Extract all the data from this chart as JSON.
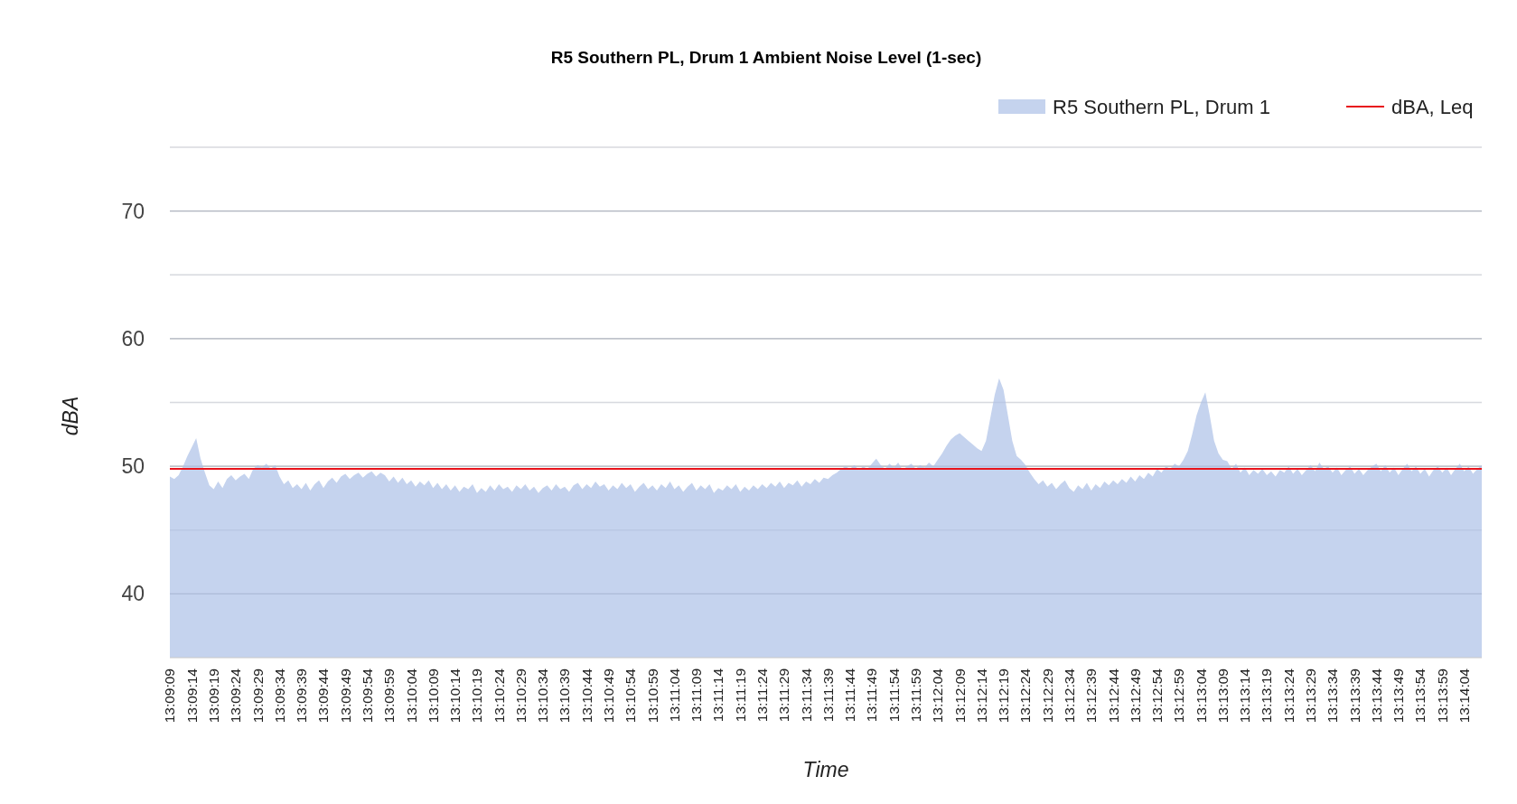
{
  "chart_data": {
    "type": "area",
    "title": "R5 Southern PL, Drum 1 Ambient Noise Level (1-sec)",
    "xlabel": "Time",
    "ylabel": "dBA",
    "categories": [
      "13:09:09",
      null,
      null,
      null,
      null,
      "13:09:14",
      null,
      null,
      null,
      null,
      "13:09:19",
      null,
      null,
      null,
      null,
      "13:09:24",
      null,
      null,
      null,
      null,
      "13:09:29",
      null,
      null,
      null,
      null,
      "13:09:34",
      null,
      null,
      null,
      null,
      "13:09:39",
      null,
      null,
      null,
      null,
      "13:09:44",
      null,
      null,
      null,
      null,
      "13:09:49",
      null,
      null,
      null,
      null,
      "13:09:54",
      null,
      null,
      null,
      null,
      "13:09:59",
      null,
      null,
      null,
      null,
      "13:10:04",
      null,
      null,
      null,
      null,
      "13:10:09",
      null,
      null,
      null,
      null,
      "13:10:14",
      null,
      null,
      null,
      null,
      "13:10:19",
      null,
      null,
      null,
      null,
      "13:10:24",
      null,
      null,
      null,
      null,
      "13:10:29",
      null,
      null,
      null,
      null,
      "13:10:34",
      null,
      null,
      null,
      null,
      "13:10:39",
      null,
      null,
      null,
      null,
      "13:10:44",
      null,
      null,
      null,
      null,
      "13:10:49",
      null,
      null,
      null,
      null,
      "13:10:54",
      null,
      null,
      null,
      null,
      "13:10:59",
      null,
      null,
      null,
      null,
      "13:11:04",
      null,
      null,
      null,
      null,
      "13:11:09",
      null,
      null,
      null,
      null,
      "13:11:14",
      null,
      null,
      null,
      null,
      "13:11:19",
      null,
      null,
      null,
      null,
      "13:11:24",
      null,
      null,
      null,
      null,
      "13:11:29",
      null,
      null,
      null,
      null,
      "13:11:34",
      null,
      null,
      null,
      null,
      "13:11:39",
      null,
      null,
      null,
      null,
      "13:11:44",
      null,
      null,
      null,
      null,
      "13:11:49",
      null,
      null,
      null,
      null,
      "13:11:54",
      null,
      null,
      null,
      null,
      "13:11:59",
      null,
      null,
      null,
      null,
      "13:12:04",
      null,
      null,
      null,
      null,
      "13:12:09",
      null,
      null,
      null,
      null,
      "13:12:14",
      null,
      null,
      null,
      null,
      "13:12:19",
      null,
      null,
      null,
      null,
      "13:12:24",
      null,
      null,
      null,
      null,
      "13:12:29",
      null,
      null,
      null,
      null,
      "13:12:34",
      null,
      null,
      null,
      null,
      "13:12:39",
      null,
      null,
      null,
      null,
      "13:12:44",
      null,
      null,
      null,
      null,
      "13:12:49",
      null,
      null,
      null,
      null,
      "13:12:54",
      null,
      null,
      null,
      null,
      "13:12:59",
      null,
      null,
      null,
      null,
      "13:13:04",
      null,
      null,
      null,
      null,
      "13:13:09",
      null,
      null,
      null,
      null,
      "13:13:14",
      null,
      null,
      null,
      null,
      "13:13:19",
      null,
      null,
      null,
      null,
      "13:13:24",
      null,
      null,
      null,
      null,
      "13:13:29",
      null,
      null,
      null,
      null,
      "13:13:34",
      null,
      null,
      null,
      null,
      "13:13:39",
      null,
      null,
      null,
      null,
      "13:13:44",
      null,
      null,
      null,
      null,
      "13:13:49",
      null,
      null,
      null,
      null,
      "13:13:54",
      null,
      null,
      null,
      null,
      "13:13:59",
      null,
      null,
      null,
      null,
      "13:14:04",
      null,
      null,
      null,
      null
    ],
    "series": [
      {
        "name": "R5 Southern PL, Drum 1",
        "color": "#c5d3ee",
        "values": [
          49.2,
          49.0,
          49.3,
          50.0,
          50.8,
          51.5,
          52.2,
          50.6,
          49.5,
          48.5,
          48.2,
          48.8,
          48.3,
          49.0,
          49.3,
          48.9,
          49.2,
          49.4,
          49.0,
          49.8,
          50.1,
          49.9,
          50.2,
          49.8,
          50.1,
          49.2,
          48.6,
          48.9,
          48.3,
          48.6,
          48.2,
          48.7,
          48.1,
          48.6,
          48.9,
          48.3,
          48.8,
          49.1,
          48.7,
          49.2,
          49.4,
          49.0,
          49.3,
          49.5,
          49.1,
          49.4,
          49.6,
          49.2,
          49.5,
          49.3,
          48.8,
          49.2,
          48.7,
          49.1,
          48.6,
          48.9,
          48.4,
          48.8,
          48.5,
          48.9,
          48.3,
          48.7,
          48.2,
          48.6,
          48.1,
          48.5,
          48.0,
          48.4,
          48.2,
          48.6,
          47.9,
          48.3,
          48.0,
          48.5,
          48.1,
          48.6,
          48.2,
          48.4,
          48.0,
          48.5,
          48.2,
          48.6,
          48.1,
          48.4,
          47.9,
          48.3,
          48.5,
          48.1,
          48.6,
          48.2,
          48.4,
          48.0,
          48.5,
          48.7,
          48.2,
          48.6,
          48.3,
          48.8,
          48.4,
          48.6,
          48.1,
          48.5,
          48.2,
          48.7,
          48.3,
          48.6,
          48.0,
          48.4,
          48.7,
          48.2,
          48.5,
          48.1,
          48.6,
          48.3,
          48.8,
          48.2,
          48.5,
          48.0,
          48.4,
          48.7,
          48.1,
          48.5,
          48.2,
          48.6,
          47.9,
          48.3,
          48.1,
          48.5,
          48.2,
          48.6,
          48.0,
          48.4,
          48.1,
          48.5,
          48.2,
          48.6,
          48.3,
          48.7,
          48.4,
          48.8,
          48.3,
          48.7,
          48.5,
          48.9,
          48.4,
          48.8,
          48.6,
          49.0,
          48.7,
          49.1,
          49.0,
          49.3,
          49.5,
          49.8,
          50.0,
          49.8,
          50.1,
          49.7,
          50.0,
          49.8,
          50.2,
          50.6,
          50.1,
          49.8,
          50.2,
          49.9,
          50.3,
          49.7,
          50.0,
          50.2,
          49.8,
          50.1,
          49.9,
          50.3,
          50.0,
          50.5,
          51.0,
          51.6,
          52.1,
          52.4,
          52.6,
          52.3,
          52.0,
          51.7,
          51.4,
          51.2,
          52.0,
          53.8,
          55.6,
          56.9,
          56.0,
          54.0,
          52.0,
          50.8,
          50.5,
          50.1,
          49.5,
          49.0,
          48.6,
          48.9,
          48.4,
          48.7,
          48.2,
          48.6,
          48.9,
          48.3,
          48.0,
          48.5,
          48.2,
          48.7,
          48.1,
          48.6,
          48.3,
          48.8,
          48.5,
          48.9,
          48.6,
          49.0,
          48.7,
          49.2,
          48.8,
          49.3,
          49.0,
          49.5,
          49.2,
          49.8,
          49.5,
          50.0,
          49.8,
          50.2,
          50.0,
          50.5,
          51.2,
          52.5,
          54.0,
          55.0,
          55.8,
          54.0,
          52.0,
          51.0,
          50.5,
          50.4,
          49.8,
          50.2,
          49.5,
          49.9,
          49.3,
          49.7,
          49.4,
          49.8,
          49.3,
          49.6,
          49.2,
          49.7,
          49.5,
          50.0,
          49.4,
          49.8,
          49.3,
          49.7,
          50.1,
          49.6,
          50.3,
          49.8,
          50.0,
          49.5,
          49.9,
          49.3,
          49.7,
          50.0,
          49.4,
          49.8,
          49.3,
          49.7,
          50.0,
          50.2,
          49.6,
          50.1,
          49.5,
          49.9,
          49.3,
          49.8,
          50.2,
          49.6,
          50.0,
          49.4,
          49.8,
          49.2,
          49.7,
          50.0,
          49.5,
          49.9,
          49.3,
          49.8,
          50.2,
          49.6,
          50.0,
          49.4,
          49.8,
          50.1
        ]
      }
    ],
    "ref_lines": [
      {
        "axis": "y",
        "value": 49.8,
        "label": "dBA, Leq",
        "color": "#e8141c"
      }
    ],
    "ylim": [
      35,
      75
    ],
    "yticks": [
      40,
      {
        "value": 45,
        "label": null
      },
      50,
      {
        "value": 55,
        "label": null
      },
      60,
      {
        "value": 65,
        "label": null
      },
      70,
      {
        "value": 75,
        "label": null
      }
    ],
    "grid": "y",
    "legend": "top right"
  }
}
